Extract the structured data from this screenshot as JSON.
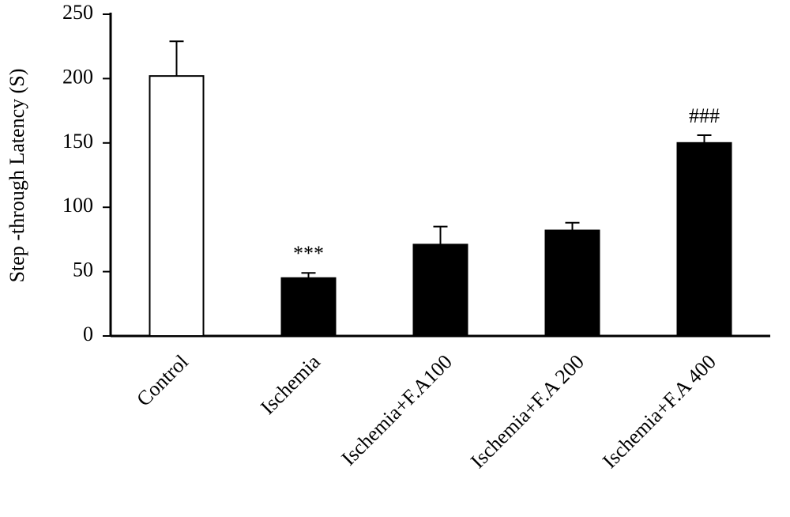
{
  "chart_data": {
    "type": "bar",
    "y_label": "Step -through Latency (S)",
    "categories": [
      "Control",
      "Ischemia",
      "Ischemia+F.A100",
      "Ischemia+F.A 200",
      "Ischemia+F.A 400"
    ],
    "values": [
      202,
      45,
      71,
      82,
      150
    ],
    "errors": [
      27,
      4,
      14,
      6,
      6
    ],
    "colors": [
      "#ffffff",
      "#000000",
      "#000000",
      "#000000",
      "#000000"
    ],
    "annotations": [
      null,
      "***",
      null,
      null,
      "###"
    ],
    "ylim": [
      0,
      250
    ],
    "yticks": [
      0,
      50,
      100,
      150,
      200,
      250
    ],
    "grid": false
  }
}
